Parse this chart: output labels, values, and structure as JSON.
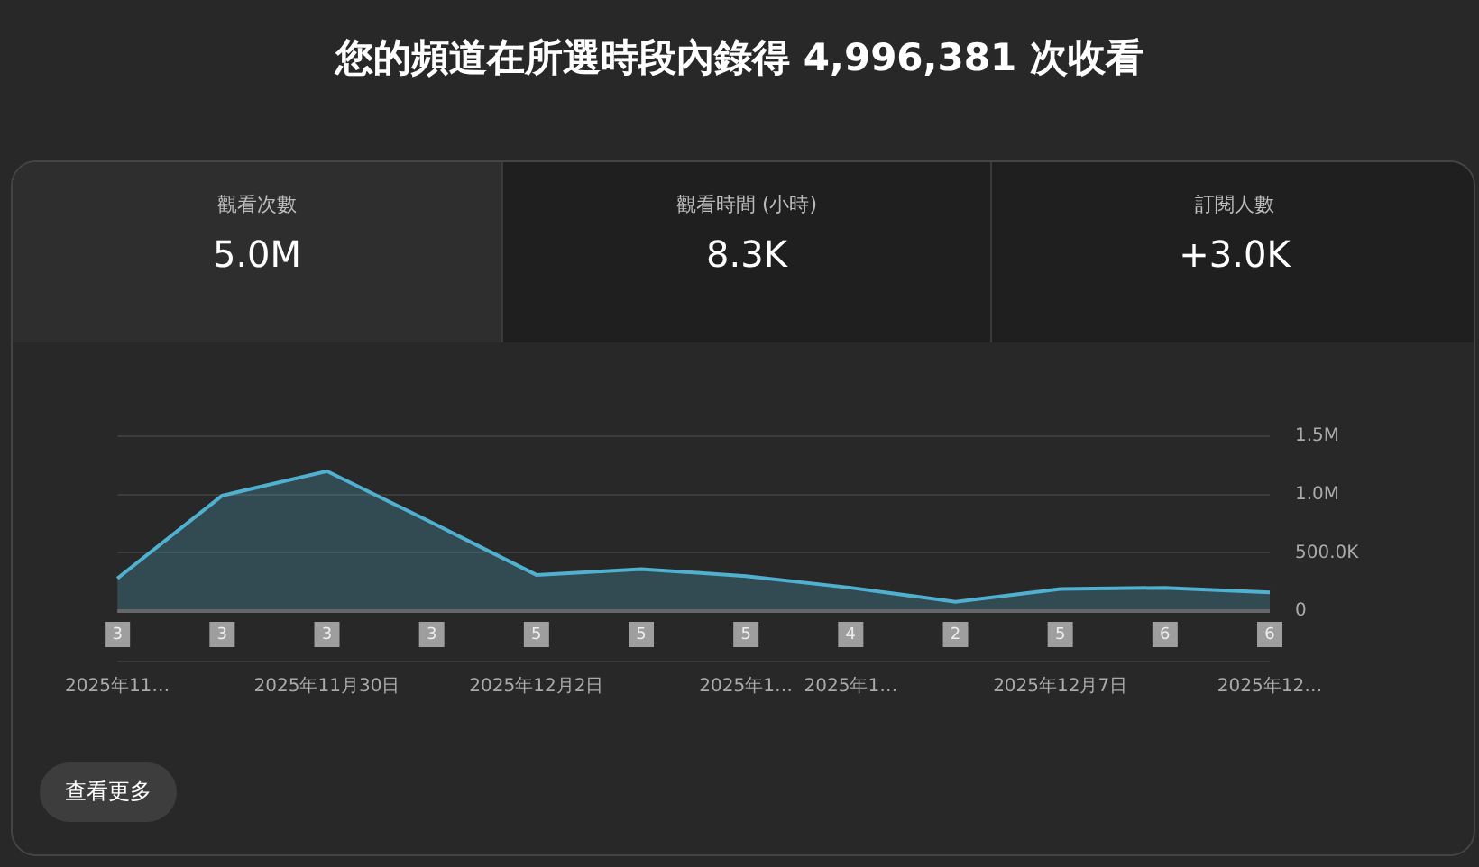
{
  "chart_data": [
    {
      "type": "other",
      "title": "您的頻道在所選時段內錄得 4,996,381 次收看",
      "annotations": [
        "觀看次數",
        "5.0M",
        "觀看時間 (小時)",
        "8.3K",
        "訂閱人數",
        "+3.0K",
        "查看更多"
      ]
    },
    {
      "type": "area",
      "categories": [
        "2025年11…",
        null,
        "2025年11月30日",
        null,
        "2025年12月2日",
        null,
        "2025年1…",
        "2025年1…",
        null,
        "2025年12月7日",
        null,
        "2025年12…"
      ],
      "series": [
        {
          "color": "#4fb0cf",
          "values": [
            280000,
            990000,
            1200000,
            760000,
            310000,
            360000,
            300000,
            200000,
            80000,
            190000,
            200000,
            160000
          ]
        }
      ],
      "ylim": [
        0,
        1500000
      ],
      "yticks": [
        0,
        {
          "value": 500000,
          "label": "500.0K"
        },
        {
          "value": 1000000,
          "label": "1.0M"
        },
        {
          "value": 1500000,
          "label": "1.5M"
        }
      ],
      "grid": "y",
      "legend": false,
      "annotations": [
        "3",
        "3",
        "3",
        "3",
        "5",
        "5",
        "5",
        "4",
        "2",
        "5",
        "6",
        "6"
      ]
    }
  ]
}
